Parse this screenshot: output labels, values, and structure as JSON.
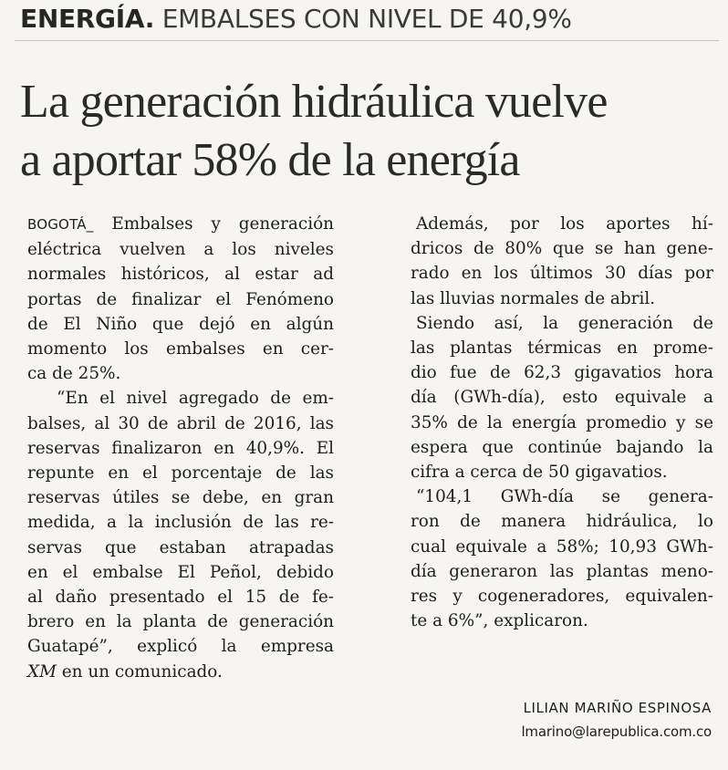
{
  "header": {
    "section": "ENERGÍA.",
    "kicker": "EMBALSES CON NIVEL DE 40,9%"
  },
  "headline": {
    "lines": [
      "La generación hidráulica vuelve",
      "a aportar 58% de la energía"
    ]
  },
  "left_column": {
    "dateline": "BOGOTÁ_",
    "p1": [
      "Embalses y generación",
      "eléctrica vuelven a los niveles",
      "normales históricos, al estar ad",
      "portas de finalizar el Fenómeno",
      "de El Niño que dejó en algún",
      "momento los embalses en cer-",
      "ca de 25%."
    ],
    "p2": [
      "“En el nivel agregado de em-",
      "balses, al 30 de abril de 2016, las",
      "reservas finalizaron en 40,9%. El",
      "repunte en el porcentaje de las",
      "reservas útiles se debe, en gran",
      "medida, a la inclusión de las re-",
      "servas que estaban atrapadas",
      "en el embalse El Peñol, debido",
      "al daño presentado el 15 de fe-",
      "brero en la planta de generación",
      "Guatapé”, explicó la empresa"
    ],
    "p2_end_italic": "XM",
    "p2_end_rest": " en un comunicado."
  },
  "right_column": {
    "p1": [
      "Además, por los aportes hí-",
      "dricos de 80% que se han gene-",
      "rado en los últimos 30 días por",
      "las lluvias normales de abril."
    ],
    "p2": [
      "Siendo así, la generación de",
      "las plantas térmicas en prome-",
      "dio fue de 62,3 gigavatios hora",
      "día (GWh-día), esto equivale a",
      "35% de la energía promedio y se",
      "espera que continúe bajando la",
      "cifra a cerca de 50 gigavatios."
    ],
    "p3": [
      "“104,1 GWh-día se genera-",
      "ron de manera hidráulica, lo",
      "cual equivale a 58%; 10,93 GWh-",
      "día generaron las plantas meno-",
      "res y cogeneradores, equivalen-",
      "te a 6%”, explicaron."
    ]
  },
  "byline": {
    "author": "LILIAN MARIÑO ESPINOSA",
    "email": "lmarino@larepublica.com.co"
  }
}
